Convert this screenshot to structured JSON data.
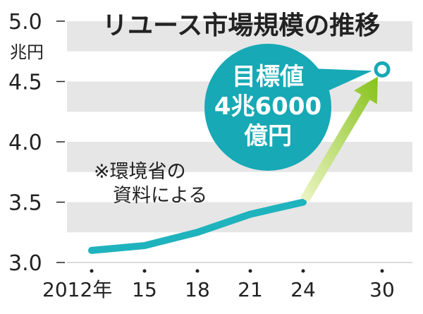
{
  "chart_data": {
    "type": "line",
    "title": "リユース市場規模の推移",
    "unit_label": "兆円",
    "ylim": [
      3.0,
      5.0
    ],
    "y_ticks": [
      "3.0",
      "3.5",
      "4.0",
      "4.5",
      "5.0"
    ],
    "x_tick_labels": [
      "2012年",
      "15",
      "18",
      "21",
      "24",
      "30"
    ],
    "series": [
      {
        "x": [
          2012,
          2015,
          2018,
          2021,
          2024
        ],
        "values": [
          3.1,
          3.14,
          3.25,
          3.4,
          3.5
        ]
      }
    ],
    "target": {
      "x": 2030,
      "value": 4.6,
      "label_lines": [
        "目標値",
        "4兆6000",
        "億円"
      ]
    },
    "note_lines": [
      "※環境省の",
      "資料による"
    ],
    "colors": {
      "line": "#1fb3bd",
      "target_circle": "#17a9b5",
      "arrow_start": "#eef6c8",
      "arrow_end": "#86c21a",
      "band": "#e6e6e6"
    }
  }
}
